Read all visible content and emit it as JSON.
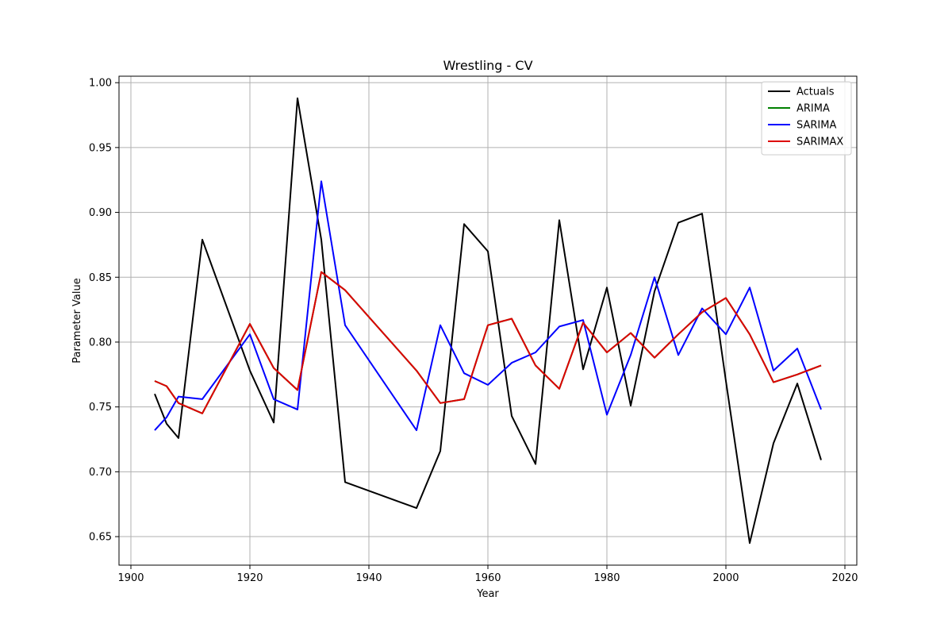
{
  "chart_data": {
    "type": "line",
    "title": "Wrestling - CV",
    "xlabel": "Year",
    "ylabel": "Parameter Value",
    "xlim": [
      1898,
      2022
    ],
    "ylim": [
      0.628,
      1.005
    ],
    "xticks": [
      1900,
      1920,
      1940,
      1960,
      1980,
      2000,
      2020
    ],
    "yticks": [
      0.65,
      0.7,
      0.75,
      0.8,
      0.85,
      0.9,
      0.95,
      1.0
    ],
    "xtick_labels": [
      "1900",
      "1920",
      "1940",
      "1960",
      "1980",
      "2000",
      "2020"
    ],
    "ytick_labels": [
      "0.65",
      "0.70",
      "0.75",
      "0.80",
      "0.85",
      "0.90",
      "0.95",
      "1.00"
    ],
    "grid": true,
    "legend_position": "top-right",
    "x": [
      1904,
      1906,
      1908,
      1912,
      1920,
      1924,
      1928,
      1932,
      1936,
      1948,
      1952,
      1956,
      1960,
      1964,
      1968,
      1972,
      1976,
      1980,
      1984,
      1988,
      1992,
      1996,
      2000,
      2004,
      2008,
      2012,
      2016
    ],
    "series": [
      {
        "name": "Actuals",
        "color": "#000000",
        "values": [
          0.76,
          0.737,
          0.726,
          0.879,
          0.778,
          0.738,
          0.988,
          0.879,
          0.692,
          0.672,
          0.716,
          0.891,
          0.87,
          0.743,
          0.706,
          0.894,
          0.779,
          0.842,
          0.751,
          0.839,
          0.892,
          0.899,
          0.77,
          0.645,
          0.722,
          0.768,
          0.709
        ]
      },
      {
        "name": "ARIMA",
        "color": "#008000",
        "values": [
          0.77,
          0.766,
          0.753,
          0.745,
          0.814,
          0.78,
          0.763,
          0.854,
          0.84,
          0.778,
          0.753,
          0.756,
          0.813,
          0.818,
          0.782,
          0.764,
          0.815,
          0.792,
          0.807,
          0.788,
          0.806,
          0.823,
          0.834,
          0.806,
          0.769,
          0.775,
          0.782
        ]
      },
      {
        "name": "SARIMA",
        "color": "#0000ff",
        "values": [
          0.732,
          0.742,
          0.758,
          0.756,
          0.806,
          0.756,
          0.748,
          0.924,
          0.813,
          0.732,
          0.813,
          0.776,
          0.767,
          0.784,
          0.792,
          0.812,
          0.817,
          0.744,
          0.79,
          0.85,
          0.79,
          0.826,
          0.806,
          0.842,
          0.778,
          0.795,
          0.748
        ]
      },
      {
        "name": "SARIMAX",
        "color": "#dd0000",
        "values": [
          0.77,
          0.766,
          0.753,
          0.745,
          0.814,
          0.78,
          0.763,
          0.854,
          0.84,
          0.778,
          0.753,
          0.756,
          0.813,
          0.818,
          0.782,
          0.764,
          0.815,
          0.792,
          0.807,
          0.788,
          0.806,
          0.823,
          0.834,
          0.806,
          0.769,
          0.775,
          0.782
        ]
      }
    ]
  }
}
